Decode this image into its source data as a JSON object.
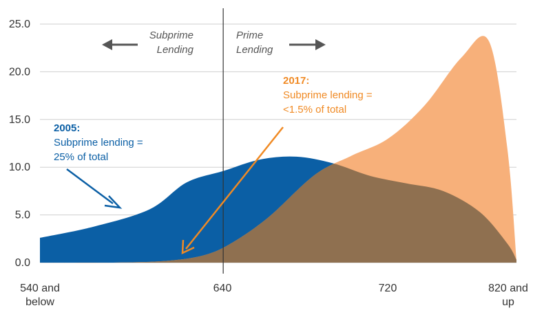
{
  "chart_data": {
    "type": "area",
    "title": "",
    "xlabel": "",
    "ylabel": "",
    "ylim": [
      0,
      25
    ],
    "grid": true,
    "y_ticks": [
      "25.0",
      "20.0",
      "15.0",
      "10.0",
      "5.0",
      "0.0"
    ],
    "x_ticks": [
      {
        "lines": [
          "540 and",
          "below"
        ]
      },
      {
        "lines": [
          "640"
        ]
      },
      {
        "lines": [
          "720"
        ]
      },
      {
        "lines": [
          "820 and",
          "up"
        ]
      }
    ],
    "x_range": [
      "540 and below",
      "820 and up"
    ],
    "divider_at": "640",
    "series": [
      {
        "name": "2005",
        "color": "#0b5fa5",
        "points": [
          [
            540,
            2.6
          ],
          [
            570,
            3.8
          ],
          [
            600,
            5.6
          ],
          [
            620,
            8.4
          ],
          [
            640,
            9.6
          ],
          [
            660,
            10.8
          ],
          [
            680,
            11.1
          ],
          [
            700,
            10.4
          ],
          [
            720,
            9.1
          ],
          [
            740,
            8.3
          ],
          [
            760,
            7.5
          ],
          [
            780,
            5.3
          ],
          [
            795,
            2.0
          ],
          [
            800,
            0.3
          ]
        ]
      },
      {
        "name": "2017",
        "color": "#f7b07a",
        "points": [
          [
            540,
            0.0
          ],
          [
            580,
            0.0
          ],
          [
            610,
            0.2
          ],
          [
            630,
            0.8
          ],
          [
            645,
            2.1
          ],
          [
            665,
            4.8
          ],
          [
            690,
            9.2
          ],
          [
            710,
            11.2
          ],
          [
            730,
            13.0
          ],
          [
            750,
            16.5
          ],
          [
            770,
            21.5
          ],
          [
            785,
            23.2
          ],
          [
            795,
            12.0
          ],
          [
            800,
            0.3
          ]
        ]
      }
    ],
    "overlap_color": "#8f7050",
    "annotations": {
      "subprime_label": [
        "Subprime",
        "Lending"
      ],
      "prime_label": [
        "Prime",
        "Lending"
      ],
      "a2005": {
        "title": "2005:",
        "lines": [
          "Subprime lending =",
          "25% of total"
        ],
        "color": "#0b5fa5"
      },
      "a2017": {
        "title": "2017:",
        "lines": [
          "Subprime lending =",
          "<1.5% of total"
        ],
        "color": "#f08a24"
      }
    }
  }
}
